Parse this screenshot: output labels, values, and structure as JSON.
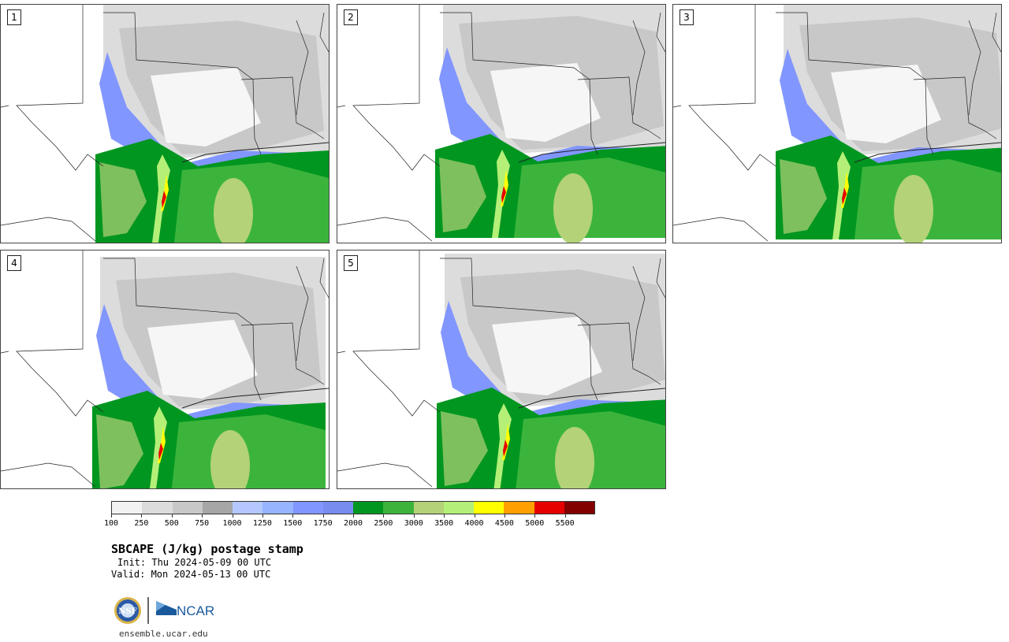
{
  "panels": [
    {
      "label": "1",
      "variant": 0
    },
    {
      "label": "2",
      "variant": 1
    },
    {
      "label": "3",
      "variant": 2
    },
    {
      "label": "4",
      "variant": 3
    },
    {
      "label": "5",
      "variant": 4
    }
  ],
  "colorbar": {
    "colors": [
      "#f2f2f2",
      "#dcdcdc",
      "#c8c8c8",
      "#a6a6a6",
      "#b4c8ff",
      "#96b4ff",
      "#8296ff",
      "#788cf0",
      "#009620",
      "#3cb43c",
      "#b4d278",
      "#b4f078",
      "#ffff00",
      "#ffa000",
      "#e60000",
      "#820000"
    ],
    "tick_labels": [
      "100",
      "250",
      "500",
      "750",
      "1000",
      "1250",
      "1500",
      "1750",
      "2000",
      "2500",
      "3000",
      "3500",
      "4000",
      "4500",
      "5000",
      "5500"
    ]
  },
  "title": "SBCAPE (J/kg) postage stamp",
  "init": "Init: Thu 2024-05-09 00 UTC",
  "valid": "Valid: Mon 2024-05-13 00 UTC",
  "logos": {
    "nsf": "NSF",
    "ncar": "NCAR"
  },
  "url": "ensemble.ucar.edu"
}
